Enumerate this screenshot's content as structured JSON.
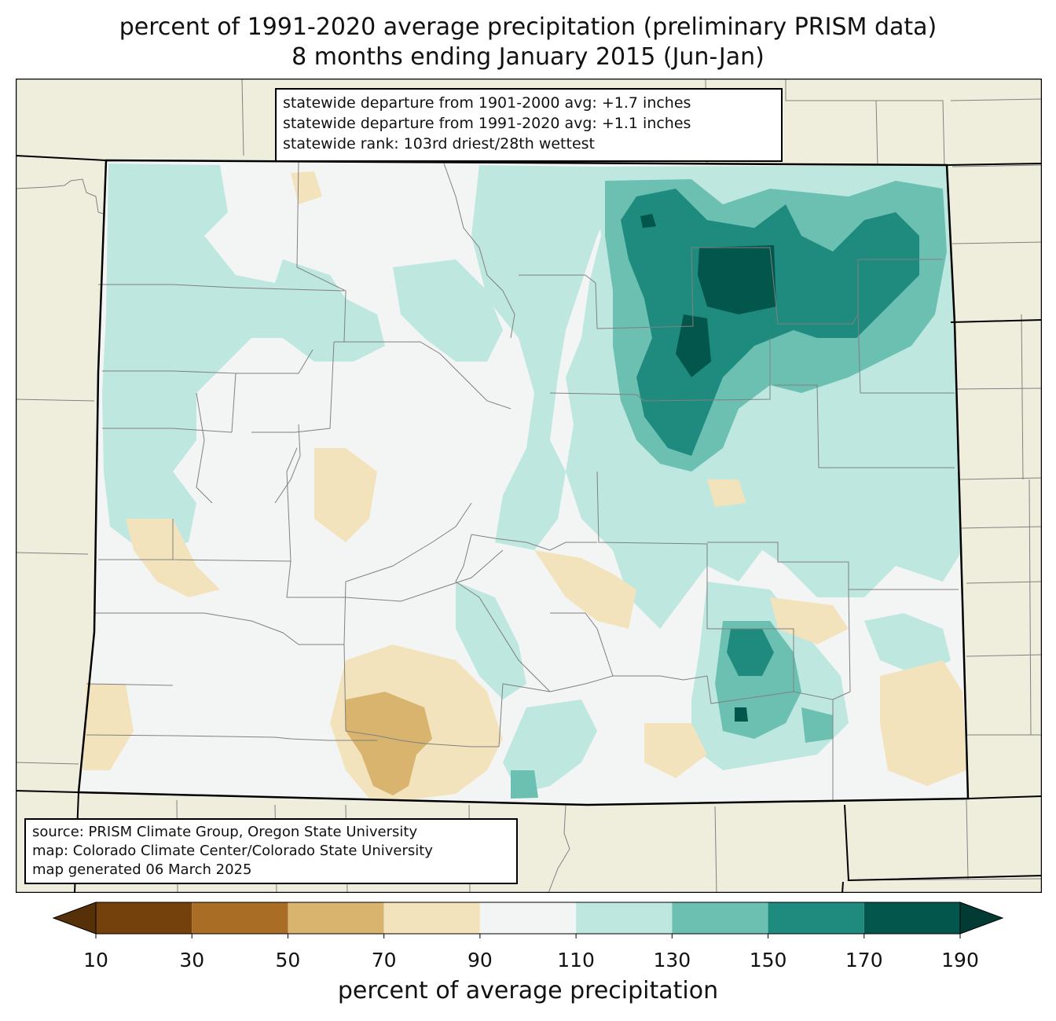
{
  "title": {
    "line1": "percent of 1991-2020 average precipitation (preliminary PRISM data)",
    "line2": "8 months ending January 2015 (Jun-Jan)"
  },
  "stats": {
    "line1": "statewide departure from 1901-2000 avg: +1.7 inches",
    "line2": "statewide departure from 1991-2020 avg: +1.1 inches",
    "line3": "statewide rank: 103rd driest/28th wettest"
  },
  "source": {
    "line1": "source: PRISM Climate Group, Oregon State University",
    "line2": "map: Colorado Climate Center/Colorado State University",
    "line3": "map generated 06 March 2025"
  },
  "colorbar": {
    "label": "percent of average precipitation",
    "ticks": [
      "10",
      "30",
      "50",
      "70",
      "90",
      "110",
      "130",
      "150",
      "170",
      "190"
    ],
    "colors": [
      "#74400c",
      "#a96d25",
      "#d8b46e",
      "#f3e3bc",
      "#f3f5f4",
      "#bee7e0",
      "#6cc0b2",
      "#1f8a7e",
      "#03564b"
    ],
    "under_color": "#553008",
    "over_color": "#023b33"
  },
  "colors": {
    "land_outside": "#efeedd",
    "border": "#000000",
    "county": "#808080"
  }
}
